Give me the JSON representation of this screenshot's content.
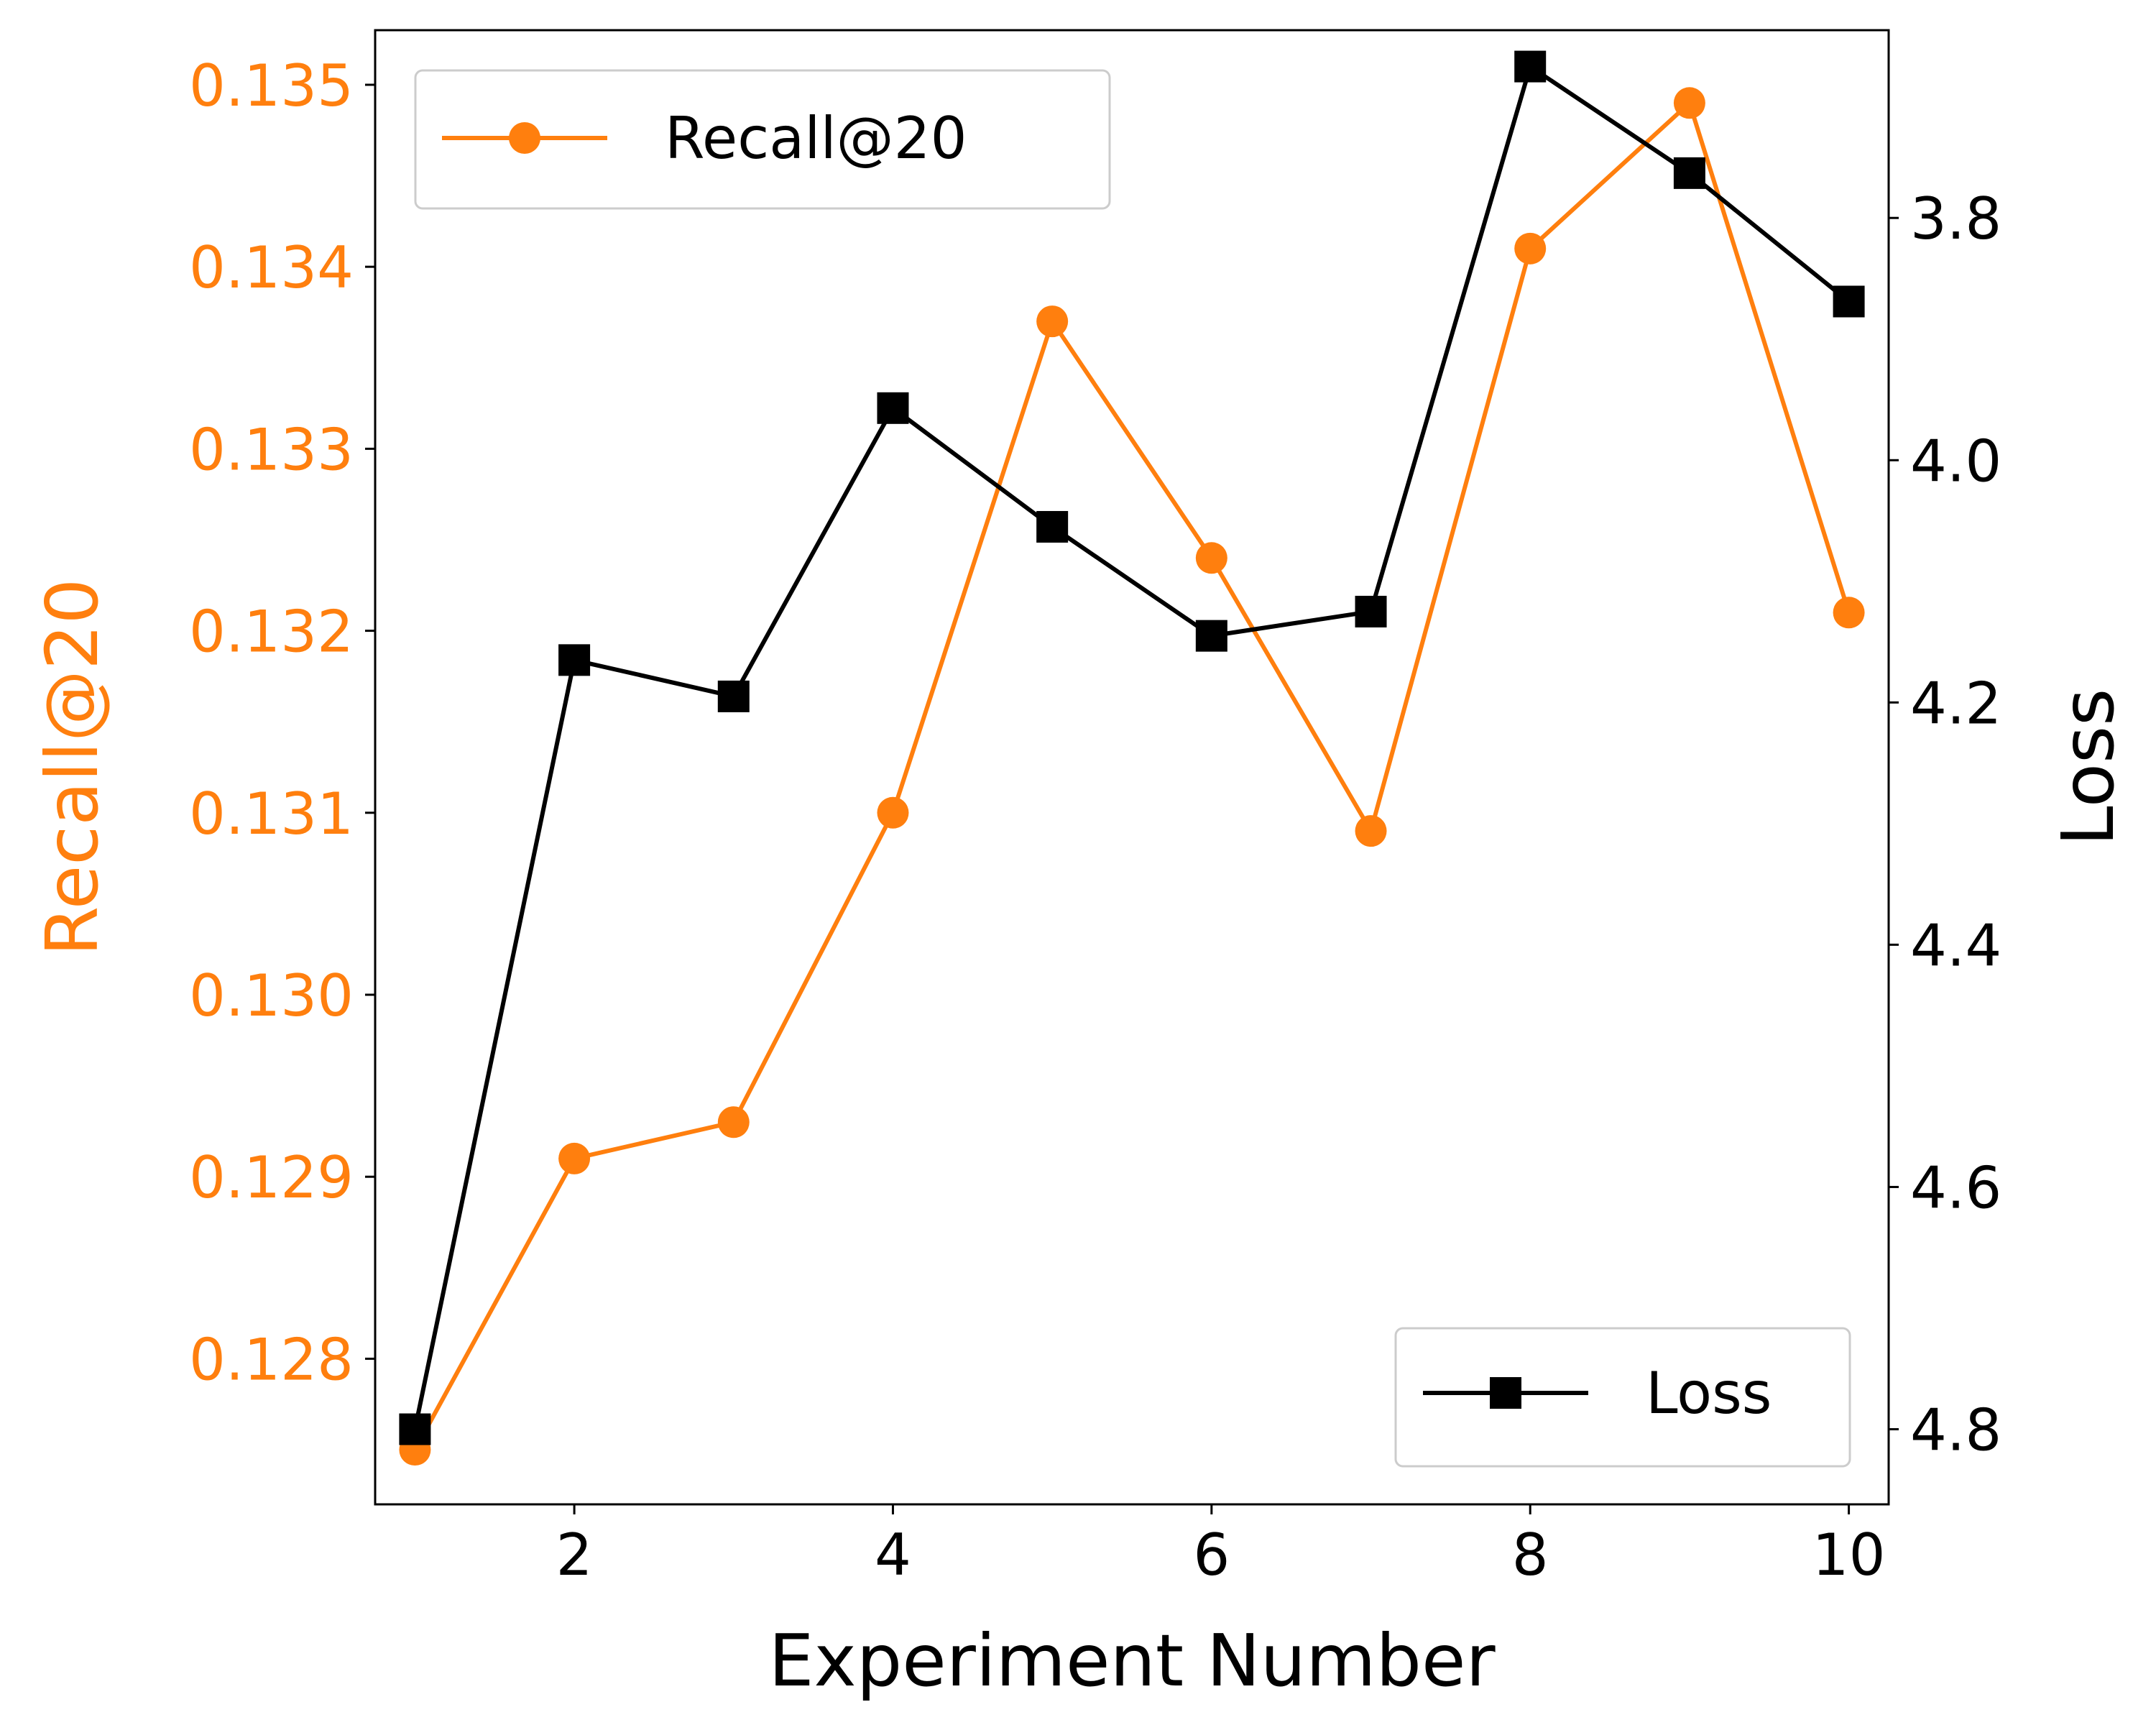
{
  "chart_data": {
    "type": "line",
    "title": "",
    "xlabel": "Experiment Number",
    "ylabel": "Recall@20",
    "y2label": "Loss",
    "x": [
      1,
      2,
      3,
      4,
      5,
      6,
      7,
      8,
      9,
      10
    ],
    "xlim": [
      0.75,
      10.25
    ],
    "xticks": [
      2,
      4,
      6,
      8,
      10
    ],
    "xtick_labels": [
      "2",
      "4",
      "6",
      "8",
      "10"
    ],
    "ylim": [
      0.1272,
      0.1353
    ],
    "yticks": [
      0.128,
      0.129,
      0.13,
      0.131,
      0.132,
      0.133,
      0.134,
      0.135
    ],
    "ytick_labels": [
      "0.128",
      "0.129",
      "0.130",
      "0.131",
      "0.132",
      "0.133",
      "0.134",
      "0.135"
    ],
    "y2lim": [
      4.862,
      3.645
    ],
    "y2ticks": [
      3.8,
      4.0,
      4.2,
      4.4,
      4.6,
      4.8
    ],
    "y2tick_labels": [
      "3.8",
      "4.0",
      "4.2",
      "4.4",
      "4.6",
      "4.8"
    ],
    "grid": false,
    "series": [
      {
        "name": "Recall@20",
        "axis": "left",
        "color": "#ff7f0e",
        "marker": "circle",
        "legend_position": "top-left",
        "values": [
          0.1275,
          0.1291,
          0.1293,
          0.131,
          0.1337,
          0.1324,
          0.1309,
          0.1341,
          0.1349,
          0.1321
        ]
      },
      {
        "name": "Loss",
        "axis": "right",
        "color": "#000000",
        "marker": "square",
        "legend_position": "bottom-right",
        "values": [
          4.8,
          4.165,
          4.195,
          3.957,
          4.055,
          4.145,
          4.125,
          3.675,
          3.763,
          3.869
        ]
      }
    ]
  }
}
